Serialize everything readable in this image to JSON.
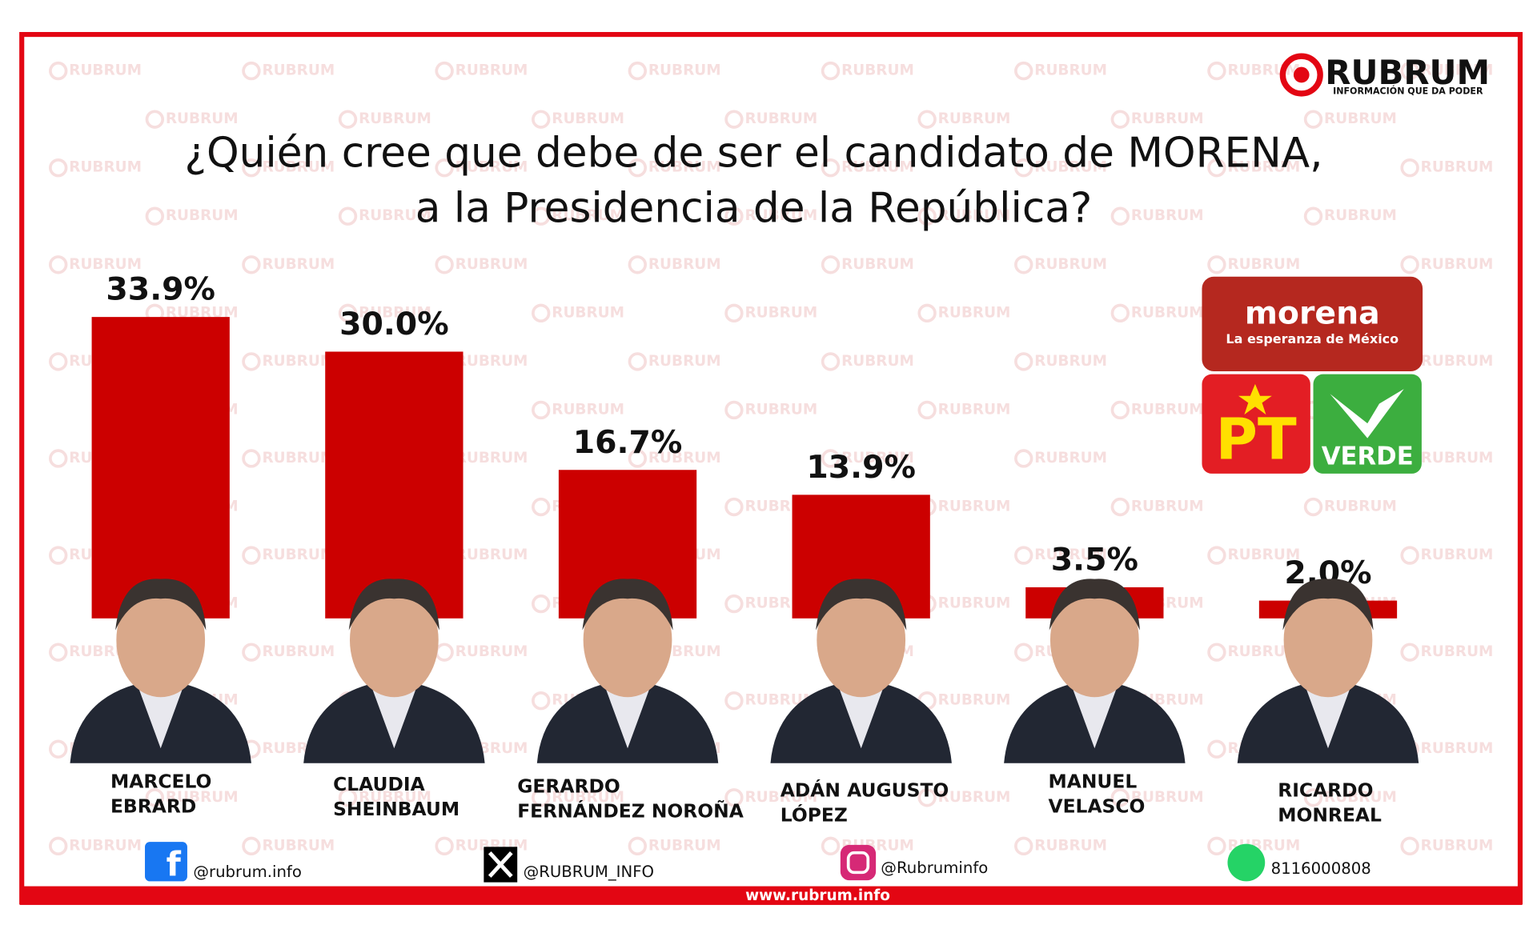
{
  "brand": {
    "name": "RUBRUM",
    "tagline": "INFORMACIÓN QUE DA PODER",
    "website": "www.rubrum.info"
  },
  "parties": {
    "morena": "morena",
    "morena_tagline": "La esperanza de México",
    "pt": "PT",
    "verde": "VERDE"
  },
  "social": {
    "facebook": "@rubrum.info",
    "x": "@RUBRUM_INFO",
    "instagram": "@Rubruminfo",
    "whatsapp": "8116000808"
  },
  "chart_data": {
    "type": "bar",
    "title": [
      "¿Quién cree que debe de ser el candidato de MORENA,",
      "a la Presidencia de la República?"
    ],
    "categories": [
      "MARCELO\nEBRARD",
      "CLAUDIA\nSHEINBAUM",
      "GERARDO\nFERNÁNDEZ NOROÑA",
      "ADÁN AUGUSTO\nLÓPEZ",
      "MANUEL\nVELASCO",
      "RICARDO\nMONREAL"
    ],
    "values": [
      33.9,
      30.0,
      16.7,
      13.9,
      3.5,
      2.0
    ],
    "value_labels": [
      "33.9%",
      "30.0%",
      "16.7%",
      "13.9%",
      "3.5%",
      "2.0%"
    ],
    "color": "#cc0000",
    "ylim": [
      0,
      34
    ]
  }
}
